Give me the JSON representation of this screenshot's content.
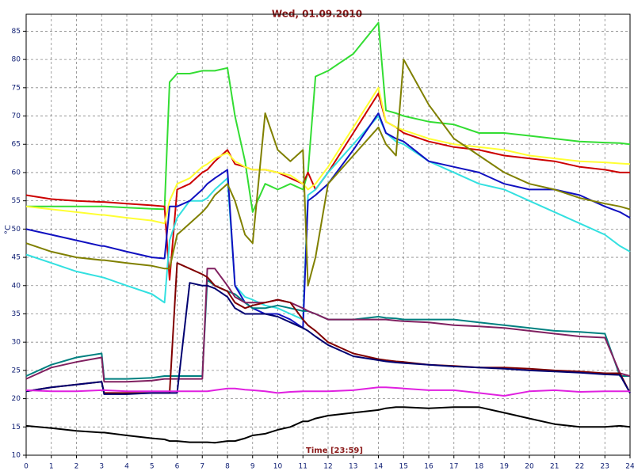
{
  "chart_data": {
    "type": "line",
    "title": "Wed, 01.09.2010",
    "x_label": "Time [23:59]",
    "y_label": "°C",
    "x": [
      0,
      1,
      2,
      3,
      3.1,
      4,
      5,
      5.5,
      5.7,
      6,
      6.5,
      7,
      7.2,
      7.5,
      8,
      8.3,
      8.7,
      9,
      9.5,
      10,
      10.5,
      11,
      11.2,
      11.5,
      12,
      13,
      14,
      14.3,
      14.7,
      15,
      16,
      17,
      18,
      19,
      20,
      21,
      22,
      23,
      23.6,
      24
    ],
    "series": [
      {
        "color": "#33dd33",
        "values": [
          54,
          54,
          54,
          54,
          54,
          53.8,
          53.6,
          53.5,
          76,
          77.5,
          77.5,
          78,
          78,
          78,
          78.5,
          70,
          62,
          53,
          58,
          57,
          58,
          57,
          60,
          77,
          78,
          81,
          86.5,
          71,
          70.5,
          70,
          69,
          68.5,
          67,
          67,
          66.5,
          66,
          65.5,
          65.3,
          65.2,
          65
        ]
      },
      {
        "color": "#cc0000",
        "values": [
          56,
          55.3,
          55,
          54.8,
          54.8,
          54.5,
          54.2,
          54,
          41,
          57,
          58,
          60,
          60.5,
          62,
          64,
          61.5,
          61,
          60.5,
          60.5,
          60,
          59,
          58,
          60,
          57,
          60,
          67,
          74,
          69,
          68,
          67,
          65.5,
          64.5,
          64,
          63,
          62.5,
          62,
          61,
          60.5,
          60,
          60
        ]
      },
      {
        "color": "#ffff33",
        "values": [
          54,
          53.5,
          53,
          52.5,
          52.5,
          52,
          51.5,
          51,
          55,
          58,
          59,
          61,
          61.5,
          62.5,
          63.5,
          62,
          61,
          60.5,
          60.5,
          60,
          59.5,
          58,
          57,
          58,
          61,
          68,
          75,
          69,
          68,
          67.5,
          66,
          65,
          64.5,
          64,
          63,
          62.5,
          62,
          61.8,
          61.6,
          61.5
        ]
      },
      {
        "color": "#33e0e0",
        "values": [
          45.5,
          44,
          42.5,
          41.5,
          41.4,
          40,
          38.5,
          37,
          48,
          52,
          55,
          55,
          55.5,
          57,
          59,
          40,
          38,
          37.5,
          36.5,
          36,
          35,
          34,
          56,
          57,
          60,
          65,
          70,
          67,
          65.5,
          65,
          62,
          60,
          58,
          57,
          55,
          53,
          51,
          49,
          47,
          46
        ]
      },
      {
        "color": "#1010c0",
        "values": [
          50,
          49,
          48,
          47,
          47,
          46,
          45,
          44.8,
          54,
          54,
          55,
          57,
          58,
          59,
          60.5,
          40,
          37,
          36,
          35,
          35,
          34,
          32.5,
          55,
          56,
          58,
          64,
          70.5,
          67,
          66,
          65.5,
          62,
          61,
          60,
          58,
          57,
          57,
          56,
          54,
          53,
          52
        ]
      },
      {
        "color": "#808000",
        "values": [
          47.5,
          46,
          45,
          44.5,
          44.5,
          44,
          43.5,
          43,
          43,
          49,
          51,
          53,
          54,
          56,
          58,
          55,
          49,
          47.5,
          70.5,
          64,
          62,
          64,
          40,
          45,
          58,
          63,
          68,
          65,
          63,
          80,
          72,
          66,
          63,
          60,
          58,
          57,
          55.5,
          54.5,
          54,
          53.5
        ]
      },
      {
        "color": "#008080",
        "values": [
          24,
          26,
          27.3,
          28,
          23.5,
          23.5,
          23.7,
          24,
          24,
          24,
          24,
          24,
          41,
          40,
          39,
          38.5,
          37,
          36,
          36,
          36.5,
          36,
          35.5,
          35.5,
          35,
          34,
          34,
          34.5,
          34.3,
          34.2,
          34,
          34,
          34,
          33.5,
          33,
          32.5,
          32,
          31.8,
          31.5,
          24,
          24
        ]
      },
      {
        "color": "#802060",
        "values": [
          23.5,
          25.5,
          26.5,
          27.3,
          23,
          23,
          23.2,
          23.5,
          23.5,
          23.5,
          23.5,
          23.5,
          43,
          43,
          40,
          38,
          37,
          37,
          37,
          37.5,
          37,
          36,
          35.5,
          35,
          34,
          34,
          34,
          34,
          33.8,
          33.7,
          33.5,
          33,
          32.8,
          32.5,
          32,
          31.5,
          31,
          30.8,
          24.5,
          24
        ]
      },
      {
        "color": "#800000",
        "values": [
          21.3,
          22,
          22.5,
          23,
          21,
          21,
          21,
          21,
          21,
          44,
          43,
          42,
          41.5,
          40,
          39,
          37,
          36,
          36.5,
          37,
          37.5,
          37,
          34,
          33,
          32,
          30,
          28,
          27,
          26.8,
          26.6,
          26.5,
          26,
          25.8,
          25.5,
          25.5,
          25.3,
          25,
          24.8,
          24.5,
          24.5,
          21
        ]
      },
      {
        "color": "#000070",
        "values": [
          21.3,
          22,
          22.5,
          23,
          20.8,
          20.8,
          21,
          21,
          21,
          21,
          40.5,
          40,
          40,
          39.5,
          38,
          36,
          35,
          35,
          35,
          34.5,
          33.5,
          32.5,
          32,
          31,
          29.5,
          27.5,
          26.8,
          26.6,
          26.4,
          26.3,
          26,
          25.7,
          25.5,
          25.3,
          25,
          24.8,
          24.6,
          24.3,
          24.2,
          21
        ]
      },
      {
        "color": "#e020e0",
        "values": [
          21.5,
          21.3,
          21.3,
          21.5,
          21.5,
          21.3,
          21.3,
          21.3,
          21.3,
          21.3,
          21.3,
          21.3,
          21.3,
          21.5,
          21.8,
          21.8,
          21.6,
          21.5,
          21.3,
          21,
          21.2,
          21.3,
          21.3,
          21.3,
          21.3,
          21.5,
          22,
          22,
          21.9,
          21.8,
          21.5,
          21.5,
          21,
          20.5,
          21.3,
          21.5,
          21.2,
          21.3,
          21.3,
          21.3
        ]
      },
      {
        "color": "#000000",
        "values": [
          15.2,
          14.8,
          14.3,
          14,
          14,
          13.5,
          13,
          12.8,
          12.5,
          12.5,
          12.3,
          12.3,
          12.3,
          12.2,
          12.5,
          12.5,
          13,
          13.5,
          13.8,
          14.5,
          15,
          16,
          16,
          16.5,
          17,
          17.5,
          18,
          18.3,
          18.5,
          18.5,
          18.3,
          18.5,
          18.5,
          17.5,
          16.5,
          15.5,
          15,
          15,
          15.2,
          15
        ]
      }
    ],
    "xlim": [
      0,
      24
    ],
    "ylim": [
      10,
      88
    ],
    "xticks": [
      0,
      1,
      2,
      3,
      4,
      5,
      6,
      7,
      8,
      9,
      10,
      11,
      12,
      13,
      14,
      15,
      16,
      17,
      18,
      19,
      20,
      21,
      22,
      23,
      24
    ],
    "yticks": [
      10,
      15,
      20,
      25,
      30,
      35,
      40,
      45,
      50,
      55,
      60,
      65,
      70,
      75,
      80,
      85
    ],
    "grid": true
  }
}
